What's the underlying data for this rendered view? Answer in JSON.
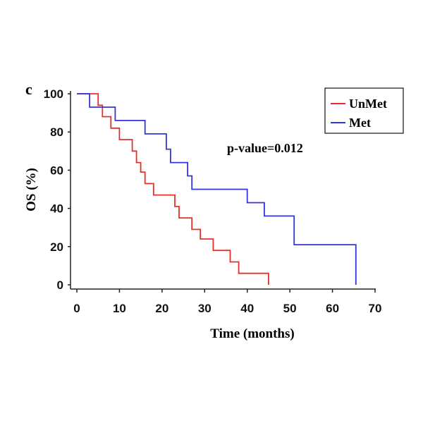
{
  "panel_label": "c",
  "chart_data": {
    "type": "line",
    "title": "",
    "xlabel": "Time (months)",
    "ylabel": "OS (%)",
    "xlim": [
      0,
      70
    ],
    "ylim": [
      0,
      100
    ],
    "x_ticks": [
      0,
      10,
      20,
      30,
      40,
      50,
      60,
      70
    ],
    "y_ticks": [
      0,
      20,
      40,
      60,
      80,
      100
    ],
    "annotation": "p-value=0.012",
    "legend": "top-right",
    "grid": false,
    "series": [
      {
        "name": "UnMet",
        "color": "#e8302a",
        "step_points": [
          [
            0,
            100
          ],
          [
            5,
            100
          ],
          [
            5,
            94
          ],
          [
            6,
            94
          ],
          [
            6,
            88
          ],
          [
            8,
            88
          ],
          [
            8,
            82
          ],
          [
            10,
            82
          ],
          [
            10,
            76
          ],
          [
            13,
            76
          ],
          [
            13,
            70
          ],
          [
            14,
            70
          ],
          [
            14,
            64
          ],
          [
            15,
            64
          ],
          [
            15,
            59
          ],
          [
            16,
            59
          ],
          [
            16,
            53
          ],
          [
            18,
            53
          ],
          [
            18,
            47
          ],
          [
            23,
            47
          ],
          [
            23,
            41
          ],
          [
            24,
            41
          ],
          [
            24,
            35
          ],
          [
            27,
            35
          ],
          [
            27,
            29
          ],
          [
            29,
            29
          ],
          [
            29,
            24
          ],
          [
            32,
            24
          ],
          [
            32,
            18
          ],
          [
            36,
            18
          ],
          [
            36,
            12
          ],
          [
            38,
            12
          ],
          [
            38,
            6
          ],
          [
            45,
            6
          ],
          [
            45,
            0
          ]
        ]
      },
      {
        "name": "Met",
        "color": "#3434e0",
        "step_points": [
          [
            0,
            100
          ],
          [
            3,
            100
          ],
          [
            3,
            93
          ],
          [
            9,
            93
          ],
          [
            9,
            86
          ],
          [
            16,
            86
          ],
          [
            16,
            79
          ],
          [
            21,
            79
          ],
          [
            21,
            71
          ],
          [
            22,
            71
          ],
          [
            22,
            64
          ],
          [
            26,
            64
          ],
          [
            26,
            57
          ],
          [
            27,
            57
          ],
          [
            27,
            50
          ],
          [
            40,
            50
          ],
          [
            40,
            43
          ],
          [
            44,
            43
          ],
          [
            44,
            36
          ],
          [
            51,
            36
          ],
          [
            51,
            21
          ],
          [
            65.5,
            21
          ],
          [
            65.5,
            0
          ]
        ]
      }
    ]
  }
}
